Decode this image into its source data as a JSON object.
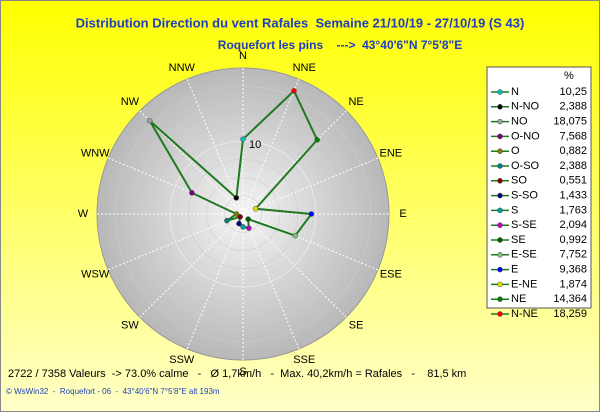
{
  "chart_data": {
    "type": "radar",
    "title": "Distribution Direction du vent Rafales  Semaine 21/10/19 - 27/10/19 (S 43)",
    "subtitle": "Roquefort les pins    --->  43°40'6\"N 7°5'8\"E",
    "directions": [
      "N",
      "NNE",
      "NE",
      "ENE",
      "E",
      "ESE",
      "SE",
      "SSE",
      "S",
      "SSW",
      "SW",
      "WSW",
      "W",
      "WNW",
      "NW",
      "NNW"
    ],
    "legend_title": "%",
    "categories": [
      "N",
      "N-NO",
      "NO",
      "O-NO",
      "O",
      "O-SO",
      "SO",
      "S-SO",
      "S",
      "S-SE",
      "SE",
      "E-SE",
      "E",
      "E-NE",
      "NE",
      "N-NE"
    ],
    "values": [
      10.25,
      2.388,
      18.075,
      7.568,
      0.882,
      2.388,
      0.551,
      1.433,
      1.763,
      2.094,
      0.992,
      7.752,
      9.368,
      1.874,
      14.364,
      18.259
    ],
    "value_labels": [
      "10,25",
      "2,388",
      "18,075",
      "7,568",
      "0,882",
      "2,388",
      "0,551",
      "1,433",
      "1,763",
      "2,094",
      "0,992",
      "7,752",
      "9,368",
      "1,874",
      "14,364",
      "18,259"
    ],
    "colors": [
      "#00c0c0",
      "#000000",
      "#a0a0a0",
      "#800080",
      "#808000",
      "#008080",
      "#800000",
      "#000080",
      "#00a0a0",
      "#c000c0",
      "#006000",
      "#80c080",
      "#0000ff",
      "#e0e000",
      "#008000",
      "#ff0000"
    ],
    "line_color": "#1f7a1f",
    "rlim": [
      0,
      20
    ],
    "rticks": [
      10
    ],
    "footer": "2722 / 7358 Valeurs  -> 73.0% calme   -   Ø 1,7km/h   -  Max. 40,2km/h = Rafales   -    81,5 km",
    "credit": "© WsWin32  -  Roquefort - 06  -  43°40'6\"N 7°5'8\"E alt 193m"
  }
}
